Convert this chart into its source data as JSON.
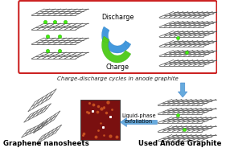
{
  "red_box_color": "#cc2222",
  "discharge_label": "Discharge",
  "charge_label": "Charge",
  "title_text": "Charge-discharge cycles in anode graphite",
  "graphene_label": "Graphene nanosheets",
  "used_anode_label": "Used Anode Graphite",
  "liquid_phase_label": "Liquid-phase\nexfoliation",
  "blue_arrow_color": "#4499dd",
  "green_arrow_color": "#55cc22",
  "down_arrow_color": "#66aadd",
  "left_arrow_color": "#66aadd",
  "green_dot_color": "#44ee11",
  "grid_color": "#666666",
  "afm_bg": "#7a1010",
  "afm_dot": "#cc5522",
  "white": "#ffffff"
}
